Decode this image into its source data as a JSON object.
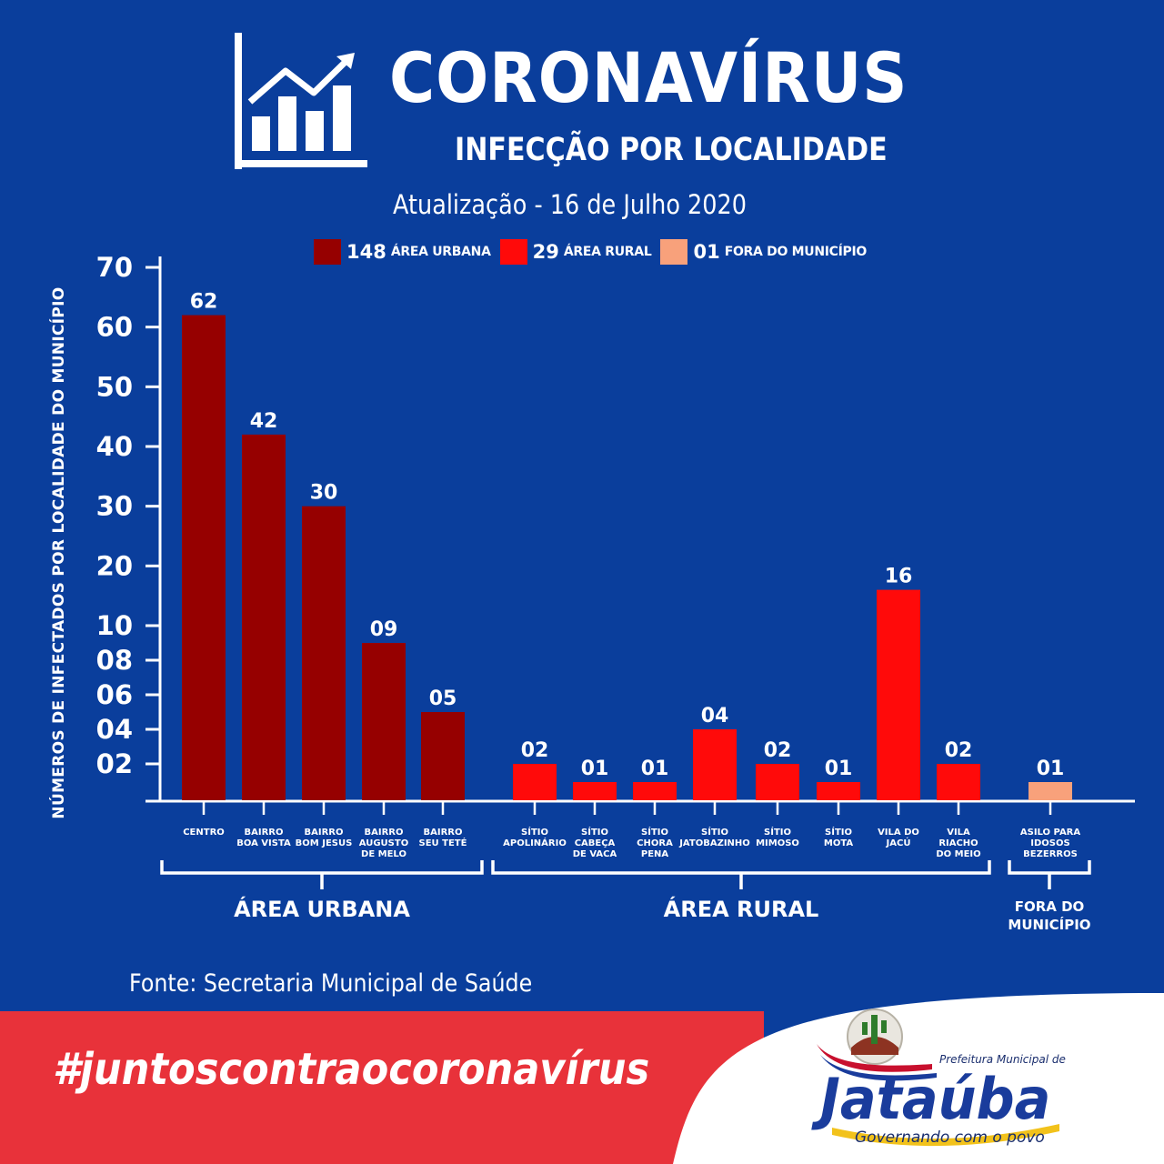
{
  "header": {
    "title": "CORONAVÍRUS",
    "subtitle": "INFECÇÃO POR LOCALIDADE",
    "update": "Atualização - 16 de Julho 2020",
    "icon": "chart-growth-icon"
  },
  "legend": [
    {
      "value": "148",
      "label": "ÁREA URBANA",
      "color": "#960000"
    },
    {
      "value": "29",
      "label": "ÁREA RURAL",
      "color": "#ff0a0a"
    },
    {
      "value": "01",
      "label": "FORA DO MUNICÍPIO",
      "color": "#f8a17b"
    }
  ],
  "chart_data": {
    "type": "bar",
    "ylabel": "NÚMEROS DE INFECTADOS POR LOCALIDADE DO MUNICÍPIO",
    "y_ticks": [
      "02",
      "04",
      "06",
      "08",
      "10",
      "20",
      "30",
      "40",
      "50",
      "60",
      "70"
    ],
    "y_tick_values": [
      2,
      4,
      6,
      8,
      10,
      20,
      30,
      40,
      50,
      60,
      70
    ],
    "y_scale": "piecewise-linear",
    "groups": [
      {
        "name": "ÁREA URBANA",
        "color": "#960000",
        "categories": [
          {
            "label": [
              "CENTRO"
            ],
            "value": 62,
            "value_label": "62"
          },
          {
            "label": [
              "BAIRRO",
              "BOA VISTA"
            ],
            "value": 42,
            "value_label": "42"
          },
          {
            "label": [
              "BAIRRO",
              "BOM JESUS"
            ],
            "value": 30,
            "value_label": "30"
          },
          {
            "label": [
              "BAIRRO",
              "AUGUSTO",
              "DE MELO"
            ],
            "value": 9,
            "value_label": "09"
          },
          {
            "label": [
              "BAIRRO",
              "SEU TETÉ"
            ],
            "value": 5,
            "value_label": "05"
          }
        ]
      },
      {
        "name": "ÁREA RURAL",
        "color": "#ff0a0a",
        "categories": [
          {
            "label": [
              "SÍTIO",
              "APOLINÁRIO"
            ],
            "value": 2,
            "value_label": "02"
          },
          {
            "label": [
              "SÍTIO",
              "CABEÇA",
              "DE VACA"
            ],
            "value": 1,
            "value_label": "01"
          },
          {
            "label": [
              "SÍTIO",
              "CHORA",
              "PENA"
            ],
            "value": 1,
            "value_label": "01"
          },
          {
            "label": [
              "SÍTIO",
              "JATOBAZINHO"
            ],
            "value": 4,
            "value_label": "04"
          },
          {
            "label": [
              "SÍTIO",
              "MIMOSO"
            ],
            "value": 2,
            "value_label": "02"
          },
          {
            "label": [
              "SÍTIO",
              "MOTA"
            ],
            "value": 1,
            "value_label": "01"
          },
          {
            "label": [
              "VILA DO",
              "JACÚ"
            ],
            "value": 16,
            "value_label": "16"
          },
          {
            "label": [
              "VILA",
              "RIACHO",
              "DO MEIO"
            ],
            "value": 2,
            "value_label": "02"
          }
        ]
      },
      {
        "name": "FORA DO MUNICÍPIO",
        "color": "#f8a17b",
        "categories": [
          {
            "label": [
              "ASILO PARA",
              "IDOSOS",
              "BEZERROS"
            ],
            "value": 1,
            "value_label": "01"
          }
        ]
      }
    ],
    "group_labels": [
      [
        "ÁREA URBANA"
      ],
      [
        "ÁREA RURAL"
      ],
      [
        "FORA DO",
        "MUNICÍPIO"
      ]
    ]
  },
  "footer": {
    "source": "Fonte: Secretaria Municipal de Saúde",
    "hashtag": "#juntoscontraocoronavírus",
    "banner_color": "#e8323a",
    "logo_subtitle": "Prefeitura Municipal de",
    "logo_name": "Jataúba",
    "logo_slogan": "Governando com o povo",
    "logo_emblem": "cactus-emblem-icon"
  }
}
